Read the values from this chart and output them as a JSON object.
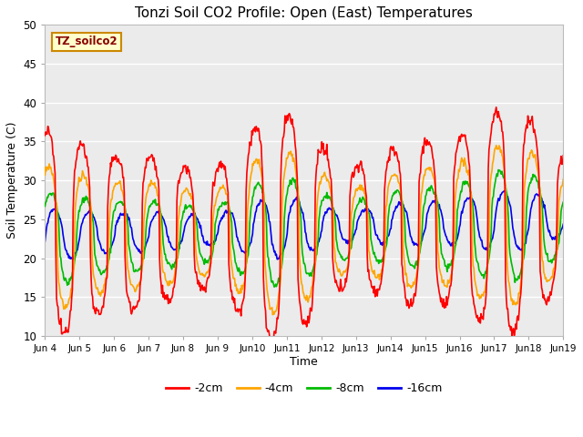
{
  "title": "Tonzi Soil CO2 Profile: Open (East) Temperatures",
  "xlabel": "Time",
  "ylabel": "Soil Temperature (C)",
  "ylim": [
    10,
    50
  ],
  "yticks": [
    10,
    15,
    20,
    25,
    30,
    35,
    40,
    45,
    50
  ],
  "colors": {
    "-2cm": "#ff0000",
    "-4cm": "#ffa500",
    "-8cm": "#00bb00",
    "-16cm": "#0000ee"
  },
  "legend_labels": [
    "-2cm",
    "-4cm",
    "-8cm",
    "-16cm"
  ],
  "legend_colors": [
    "#ff0000",
    "#ffa500",
    "#00bb00",
    "#0000ee"
  ],
  "label_box_text": "TZ_soilco2",
  "label_box_facecolor": "#ffffcc",
  "label_box_edgecolor": "#cc8800",
  "label_box_textcolor": "#880000",
  "plot_bg_color": "#ebebeb",
  "fig_bg_color": "#ffffff",
  "grid_color": "#ffffff",
  "num_days": 15,
  "points_per_day": 48,
  "start_day": 4,
  "end_day": 19,
  "xtick_labels": [
    "Jun 4",
    "Jun 5",
    "Jun 6",
    "Jun 7",
    "Jun 8",
    "Jun 9",
    "Jun 10",
    "Jun 11",
    "Jun 12",
    "Jun 13",
    "Jun 14",
    "Jun 15",
    "Jun 16",
    "Jun 17",
    "Jun 18",
    "Jun 19"
  ]
}
